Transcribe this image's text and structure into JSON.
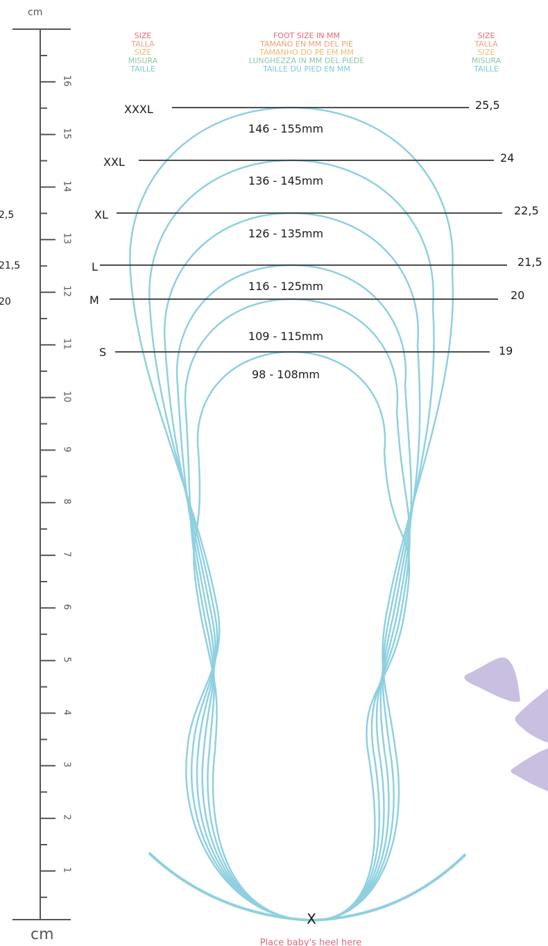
{
  "ruler": {
    "unit_top": "cm",
    "unit_bottom": "cm",
    "numbers": [
      "16",
      "15",
      "14",
      "13",
      "12",
      "11",
      "10",
      "9",
      "8",
      "7",
      "6",
      "5",
      "4",
      "3",
      "2",
      "1"
    ]
  },
  "header": {
    "left": [
      "SIZE",
      "TALLA",
      "SIZE",
      "MISURA",
      "TAILLE"
    ],
    "center": [
      "FOOT SIZE IN MM",
      "TAMAÑO EN MM DEL PIE",
      "TAMANHO DO PÉ EM MM",
      "LUNGHEZZA IN MM DEL PIEDE",
      "TAILLE DU PIED EN MM"
    ],
    "right": [
      "SIZE",
      "TALLA",
      "SIZE",
      "MISURA",
      "TAILLE"
    ],
    "colors": [
      "#e06a78",
      "#f0a07a",
      "#f2b870",
      "#8cc8a4",
      "#7cc8d8"
    ]
  },
  "sizes": [
    {
      "label": "XXXL",
      "range": "146 - 155mm",
      "eu": "25,5"
    },
    {
      "label": "XXL",
      "range": "136 - 145mm",
      "eu": "24"
    },
    {
      "label": "XL",
      "range": "126 - 135mm",
      "eu": "22,5"
    },
    {
      "label": "L",
      "range": "116 - 125mm",
      "eu": "21,5"
    },
    {
      "label": "M",
      "range": "109 - 115mm",
      "eu": "20"
    },
    {
      "label": "S",
      "range": "98 - 108mm",
      "eu": "19"
    }
  ],
  "left_cut": [
    "2,5",
    "21,5",
    "20"
  ],
  "heel_mark": "X",
  "heel_text": "Place baby's heel here",
  "colors": {
    "outline": "#8fd0e0",
    "line": "#333333",
    "ruler": "#555555",
    "accent_purple": "#c9bfe0",
    "heel_text": "#e06a78"
  }
}
